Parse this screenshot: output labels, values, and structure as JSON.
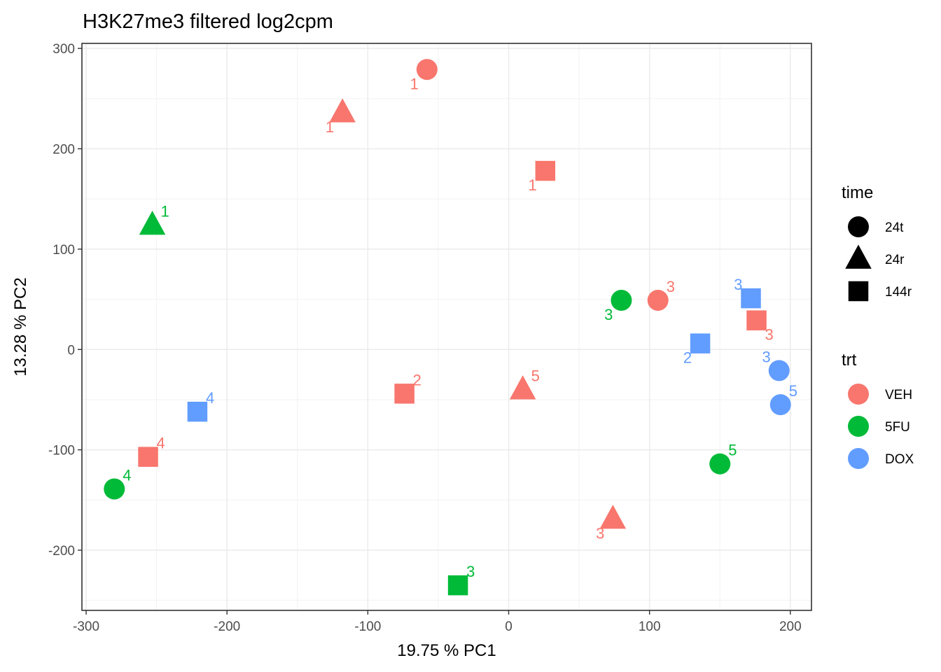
{
  "chart_data": {
    "type": "scatter",
    "title": "H3K27me3 filtered log2cpm",
    "xlabel": "19.75 % PC1",
    "ylabel": "13.28 % PC2",
    "xlim": [
      -303,
      215
    ],
    "ylim": [
      -260,
      305
    ],
    "x_ticks": [
      -300,
      -200,
      -100,
      0,
      100,
      200
    ],
    "y_ticks": [
      -200,
      -100,
      0,
      100,
      200,
      300
    ],
    "grid": true,
    "legend_position": "right",
    "legends": {
      "time": {
        "title": "time",
        "entries": [
          {
            "label": "24t",
            "shape": "circle"
          },
          {
            "label": "24r",
            "shape": "triangle"
          },
          {
            "label": "144r",
            "shape": "square"
          }
        ]
      },
      "trt": {
        "title": "trt",
        "entries": [
          {
            "label": "VEH",
            "color": "#F8766D"
          },
          {
            "label": "5FU",
            "color": "#00BA38"
          },
          {
            "label": "DOX",
            "color": "#619CFF"
          }
        ]
      }
    },
    "points": [
      {
        "x": -58,
        "y": 279,
        "trt": "VEH",
        "time": "24t",
        "label": "1",
        "label_pos": "bl"
      },
      {
        "x": -118,
        "y": 236,
        "trt": "VEH",
        "time": "24r",
        "label": "1",
        "label_pos": "bl"
      },
      {
        "x": 26,
        "y": 178,
        "trt": "VEH",
        "time": "144r",
        "label": "1",
        "label_pos": "bl"
      },
      {
        "x": -253,
        "y": 124,
        "trt": "5FU",
        "time": "24r",
        "label": "1",
        "label_pos": "tr"
      },
      {
        "x": 80,
        "y": 49,
        "trt": "5FU",
        "time": "24t",
        "label": "3",
        "label_pos": "bl"
      },
      {
        "x": 106,
        "y": 49,
        "trt": "VEH",
        "time": "24t",
        "label": "3",
        "label_pos": "tr"
      },
      {
        "x": 172,
        "y": 51,
        "trt": "DOX",
        "time": "144r",
        "label": "3",
        "label_pos": "tl"
      },
      {
        "x": 176,
        "y": 29,
        "trt": "VEH",
        "time": "144r",
        "label": "3",
        "label_pos": "br"
      },
      {
        "x": 136,
        "y": 6,
        "trt": "DOX",
        "time": "144r",
        "label": "2",
        "label_pos": "bl"
      },
      {
        "x": 192,
        "y": -21,
        "trt": "DOX",
        "time": "24t",
        "label": "3",
        "label_pos": "tl"
      },
      {
        "x": 193,
        "y": -55,
        "trt": "DOX",
        "time": "24t",
        "label": "5",
        "label_pos": "tr"
      },
      {
        "x": -74,
        "y": -44,
        "trt": "VEH",
        "time": "144r",
        "label": "2",
        "label_pos": "tr"
      },
      {
        "x": 10,
        "y": -40,
        "trt": "VEH",
        "time": "24r",
        "label": "5",
        "label_pos": "tr"
      },
      {
        "x": -221,
        "y": -62,
        "trt": "DOX",
        "time": "144r",
        "label": "4",
        "label_pos": "tr"
      },
      {
        "x": -256,
        "y": -107,
        "trt": "VEH",
        "time": "144r",
        "label": "4",
        "label_pos": "tr"
      },
      {
        "x": -280,
        "y": -139,
        "trt": "5FU",
        "time": "24t",
        "label": "4",
        "label_pos": "tr"
      },
      {
        "x": 150,
        "y": -114,
        "trt": "5FU",
        "time": "24t",
        "label": "5",
        "label_pos": "tr"
      },
      {
        "x": 74,
        "y": -169,
        "trt": "VEH",
        "time": "24r",
        "label": "3",
        "label_pos": "bl"
      },
      {
        "x": -36,
        "y": -235,
        "trt": "5FU",
        "time": "144r",
        "label": "3",
        "label_pos": "tr"
      }
    ]
  }
}
